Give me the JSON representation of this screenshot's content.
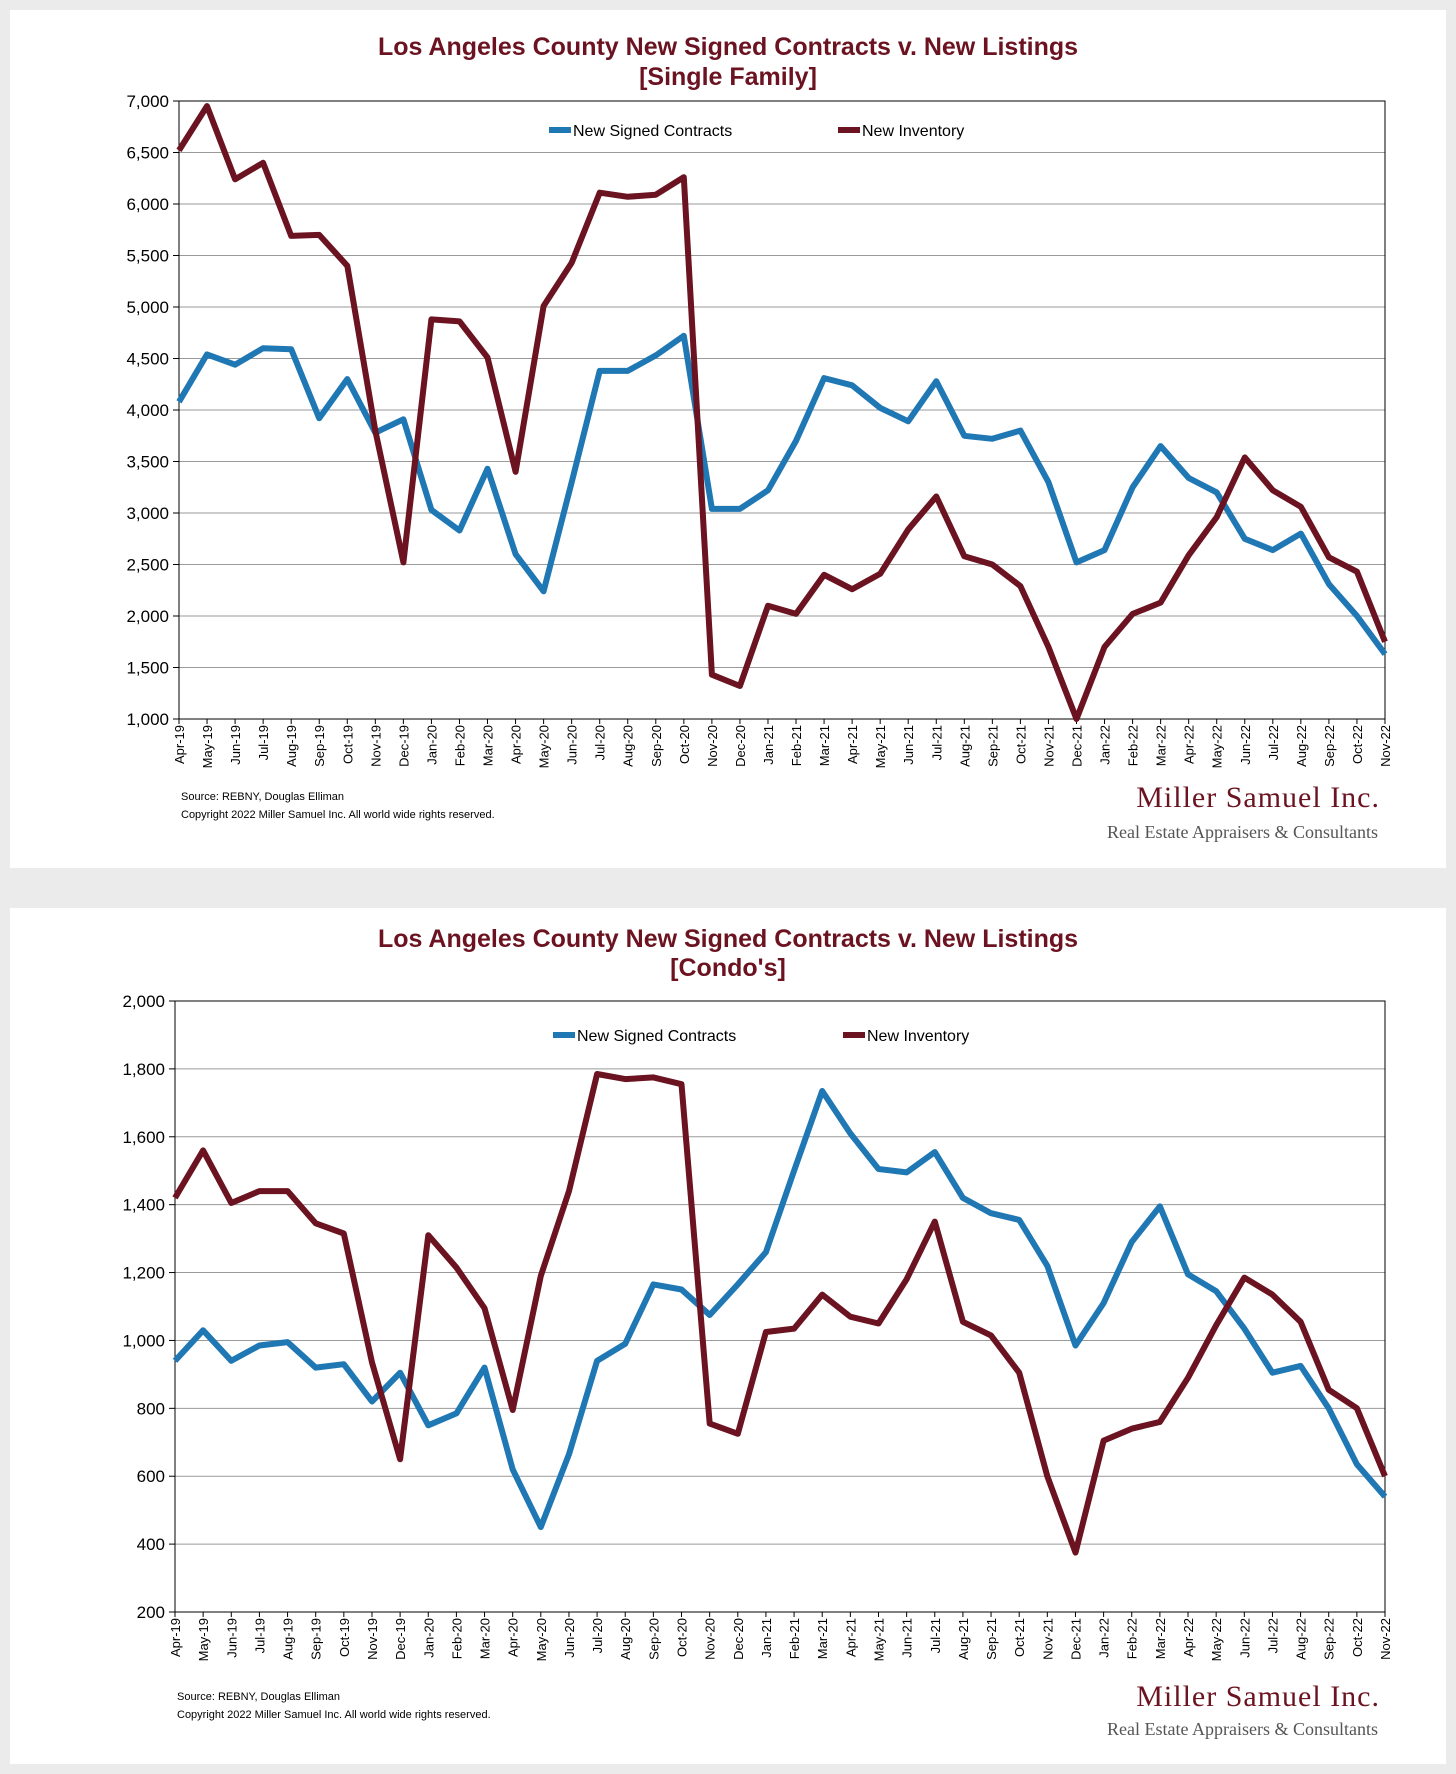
{
  "colors": {
    "contracts": "#1f77b4",
    "inventory": "#6b1320",
    "title": "#6b1320"
  },
  "chart_data": [
    {
      "type": "line",
      "title": "Los Angeles County New Signed Contracts v. New Listings",
      "subtitle": "[Single Family]",
      "xlabel": "",
      "ylabel": "",
      "ylim": [
        1000,
        7000
      ],
      "yticks": [
        "1,000",
        "1,500",
        "2,000",
        "2,500",
        "3,000",
        "3,500",
        "4,000",
        "4,500",
        "5,000",
        "5,500",
        "6,000",
        "6,500",
        "7,000"
      ],
      "ytick_values": [
        1000,
        1500,
        2000,
        2500,
        3000,
        3500,
        4000,
        4500,
        5000,
        5500,
        6000,
        6500,
        7000
      ],
      "grid": true,
      "legend": "top-center",
      "categories": [
        "Apr-19",
        "May-19",
        "Jun-19",
        "Jul-19",
        "Aug-19",
        "Sep-19",
        "Oct-19",
        "Nov-19",
        "Dec-19",
        "Jan-20",
        "Feb-20",
        "Mar-20",
        "Apr-20",
        "May-20",
        "Jun-20",
        "Jul-20",
        "Aug-20",
        "Sep-20",
        "Oct-20",
        "Nov-20",
        "Dec-20",
        "Jan-21",
        "Feb-21",
        "Mar-21",
        "Apr-21",
        "May-21",
        "Jun-21",
        "Jul-21",
        "Aug-21",
        "Sep-21",
        "Oct-21",
        "Nov-21",
        "Dec-21",
        "Jan-22",
        "Feb-22",
        "Mar-22",
        "Apr-22",
        "May-22",
        "Jun-22",
        "Jul-22",
        "Aug-22",
        "Sep-22",
        "Oct-22",
        "Nov-22"
      ],
      "series": [
        {
          "name": "New Signed Contracts",
          "values": [
            4080,
            4540,
            4440,
            4600,
            4590,
            3920,
            4300,
            3780,
            3910,
            3030,
            2830,
            3430,
            2600,
            2240,
            3300,
            4380,
            4380,
            4530,
            4720,
            3040,
            3040,
            3220,
            3700,
            4310,
            4240,
            4020,
            3890,
            4280,
            3750,
            3720,
            3800,
            3300,
            2520,
            2640,
            3250,
            3650,
            3340,
            3200,
            2750,
            2640,
            2800,
            2310,
            2000,
            1630
          ]
        },
        {
          "name": "New Inventory",
          "values": [
            6520,
            6950,
            6240,
            6400,
            5690,
            5700,
            5400,
            3800,
            2520,
            4880,
            4860,
            4510,
            3400,
            5010,
            5430,
            6110,
            6070,
            6090,
            6260,
            1430,
            1320,
            2100,
            2020,
            2400,
            2260,
            2410,
            2840,
            3160,
            2580,
            2500,
            2290,
            1700,
            1000,
            1700,
            2020,
            2130,
            2590,
            2960,
            3540,
            3220,
            3060,
            2570,
            2430,
            1750
          ]
        }
      ],
      "source": "Source: REBNY, Douglas Elliman",
      "copyright": "Copyright 2022 Miller Samuel Inc.  All world wide rights reserved."
    },
    {
      "type": "line",
      "title": "Los Angeles County New Signed Contracts v. New Listings",
      "subtitle": "[Condo's]",
      "xlabel": "",
      "ylabel": "",
      "ylim": [
        200,
        2000
      ],
      "yticks": [
        "200",
        "400",
        "600",
        "800",
        "1,000",
        "1,200",
        "1,400",
        "1,600",
        "1,800",
        "2,000"
      ],
      "ytick_values": [
        200,
        400,
        600,
        800,
        1000,
        1200,
        1400,
        1600,
        1800,
        2000
      ],
      "grid": true,
      "legend": "top-center",
      "categories": [
        "Apr-19",
        "May-19",
        "Jun-19",
        "Jul-19",
        "Aug-19",
        "Sep-19",
        "Oct-19",
        "Nov-19",
        "Dec-19",
        "Jan-20",
        "Feb-20",
        "Mar-20",
        "Apr-20",
        "May-20",
        "Jun-20",
        "Jul-20",
        "Aug-20",
        "Sep-20",
        "Oct-20",
        "Nov-20",
        "Dec-20",
        "Jan-21",
        "Feb-21",
        "Mar-21",
        "Apr-21",
        "May-21",
        "Jun-21",
        "Jul-21",
        "Aug-21",
        "Sep-21",
        "Oct-21",
        "Nov-21",
        "Dec-21",
        "Jan-22",
        "Feb-22",
        "Mar-22",
        "Apr-22",
        "May-22",
        "Jun-22",
        "Jul-22",
        "Aug-22",
        "Sep-22",
        "Oct-22",
        "Nov-22"
      ],
      "series": [
        {
          "name": "New Signed Contracts",
          "values": [
            940,
            1030,
            940,
            985,
            995,
            920,
            930,
            820,
            905,
            750,
            785,
            920,
            620,
            450,
            665,
            940,
            990,
            1165,
            1150,
            1075,
            1165,
            1260,
            1500,
            1735,
            1610,
            1505,
            1495,
            1555,
            1420,
            1375,
            1355,
            1220,
            985,
            1110,
            1290,
            1395,
            1195,
            1145,
            1035,
            905,
            925,
            800,
            635,
            540
          ]
        },
        {
          "name": "New Inventory",
          "values": [
            1420,
            1560,
            1405,
            1440,
            1440,
            1345,
            1315,
            935,
            650,
            1310,
            1215,
            1095,
            795,
            1190,
            1440,
            1785,
            1770,
            1775,
            1755,
            755,
            725,
            1025,
            1035,
            1135,
            1070,
            1050,
            1180,
            1350,
            1055,
            1015,
            905,
            600,
            375,
            705,
            740,
            760,
            890,
            1045,
            1185,
            1135,
            1055,
            855,
            800,
            600
          ]
        }
      ],
      "source": "Source: REBNY, Douglas Elliman",
      "copyright": "Copyright 2022 Miller Samuel Inc.  All world wide rights reserved."
    }
  ],
  "brand": {
    "name": "Miller Samuel Inc.",
    "tagline": "Real Estate Appraisers & Consultants"
  }
}
